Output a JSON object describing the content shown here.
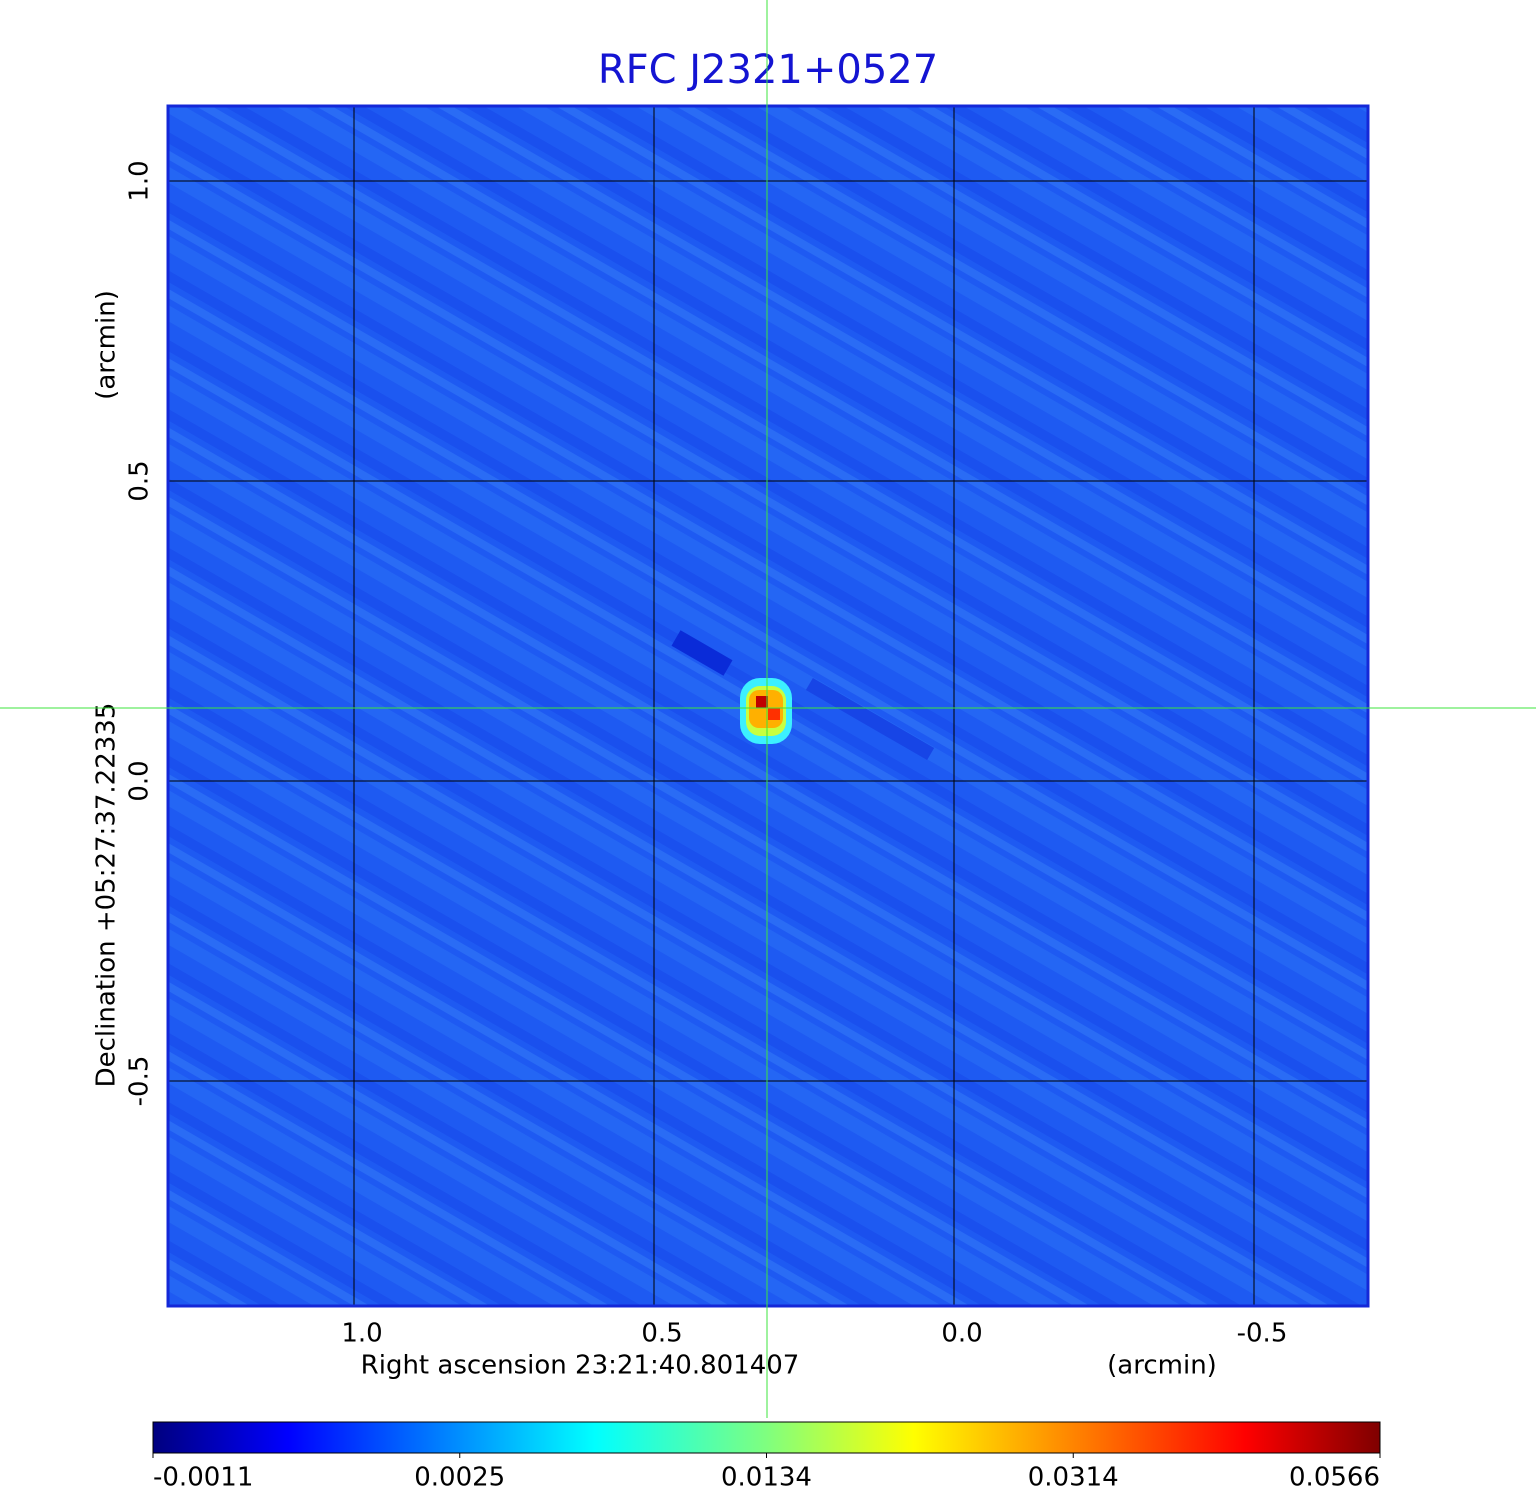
{
  "chart_data": {
    "type": "image",
    "title": "RFC J2321+0527",
    "x_label": "Right ascension  23:21:40.801407",
    "x_unit": "(arcmin)",
    "y_label": "Declination  +05:27:37.22335",
    "y_unit": "(arcmin)",
    "xlim": [
      1.31,
      -0.69
    ],
    "xticks": [
      {
        "value": 1,
        "label": "1.0"
      },
      0.5,
      {
        "value": 0,
        "label": "0.0"
      },
      -0.5
    ],
    "ylim": [
      -0.875,
      1.125
    ],
    "yticks": [
      {
        "value": 1,
        "label": "1.0"
      },
      0.5,
      {
        "value": 0,
        "label": "0.0"
      },
      -0.5
    ],
    "grid": true,
    "colormap": "jet",
    "colorbar_ticks": [
      -0.0011,
      0.0025,
      0.0134,
      0.0314,
      0.0566
    ]
  }
}
